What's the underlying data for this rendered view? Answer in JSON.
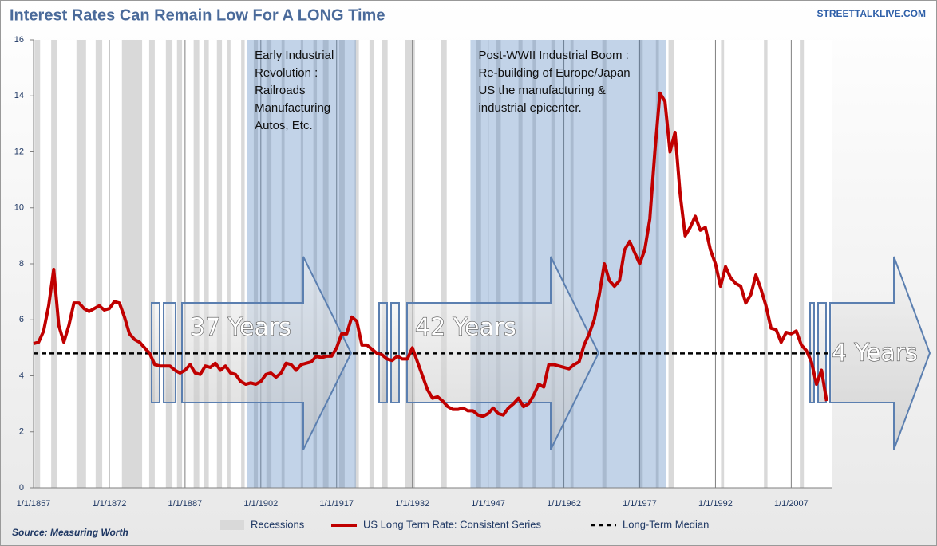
{
  "chart_data": {
    "type": "line",
    "title": "Interest Rates Can Remain Low For A LONG Time",
    "watermark": "STREETTALKLIVE.COM",
    "source": "Source: Measuring Worth",
    "x": [
      1857,
      1858,
      1859,
      1860,
      1861,
      1862,
      1863,
      1864,
      1865,
      1866,
      1867,
      1868,
      1869,
      1870,
      1871,
      1872,
      1873,
      1874,
      1875,
      1876,
      1877,
      1878,
      1879,
      1880,
      1881,
      1882,
      1883,
      1884,
      1885,
      1886,
      1887,
      1888,
      1889,
      1890,
      1891,
      1892,
      1893,
      1894,
      1895,
      1896,
      1897,
      1898,
      1899,
      1900,
      1901,
      1902,
      1903,
      1904,
      1905,
      1906,
      1907,
      1908,
      1909,
      1910,
      1911,
      1912,
      1913,
      1914,
      1915,
      1916,
      1917,
      1918,
      1919,
      1920,
      1921,
      1922,
      1923,
      1924,
      1925,
      1926,
      1927,
      1928,
      1929,
      1930,
      1931,
      1932,
      1933,
      1934,
      1935,
      1936,
      1937,
      1938,
      1939,
      1940,
      1941,
      1942,
      1943,
      1944,
      1945,
      1946,
      1947,
      1948,
      1949,
      1950,
      1951,
      1952,
      1953,
      1954,
      1955,
      1956,
      1957,
      1958,
      1959,
      1960,
      1961,
      1962,
      1963,
      1964,
      1965,
      1966,
      1967,
      1968,
      1969,
      1970,
      1971,
      1972,
      1973,
      1974,
      1975,
      1976,
      1977,
      1978,
      1979,
      1980,
      1981,
      1982,
      1983,
      1984,
      1985,
      1986,
      1987,
      1988,
      1989,
      1990,
      1991,
      1992,
      1993,
      1994,
      1995,
      1996,
      1997,
      1998,
      1999,
      2000,
      2001,
      2002,
      2003,
      2004,
      2005,
      2006,
      2007,
      2008,
      2009,
      2010,
      2011,
      2012,
      2013,
      2014
    ],
    "series": [
      {
        "name": "US Long Term Rate:  Consistent Series",
        "color": "#c00000",
        "values": [
          5.15,
          5.2,
          5.6,
          6.5,
          7.8,
          5.8,
          5.2,
          5.8,
          6.6,
          6.6,
          6.4,
          6.3,
          6.4,
          6.5,
          6.35,
          6.4,
          6.65,
          6.6,
          6.1,
          5.5,
          5.3,
          5.2,
          5.0,
          4.8,
          4.4,
          4.35,
          4.35,
          4.35,
          4.2,
          4.1,
          4.2,
          4.4,
          4.1,
          4.05,
          4.35,
          4.3,
          4.45,
          4.2,
          4.35,
          4.1,
          4.05,
          3.8,
          3.7,
          3.75,
          3.7,
          3.8,
          4.05,
          4.1,
          3.95,
          4.1,
          4.45,
          4.4,
          4.2,
          4.4,
          4.45,
          4.5,
          4.7,
          4.65,
          4.7,
          4.7,
          5.0,
          5.5,
          5.5,
          6.1,
          5.95,
          5.1,
          5.1,
          4.95,
          4.8,
          4.75,
          4.6,
          4.55,
          4.7,
          4.6,
          4.6,
          5.0,
          4.5,
          4.0,
          3.5,
          3.2,
          3.25,
          3.1,
          2.9,
          2.8,
          2.8,
          2.85,
          2.75,
          2.75,
          2.6,
          2.55,
          2.65,
          2.85,
          2.65,
          2.6,
          2.85,
          3.0,
          3.2,
          2.9,
          3.0,
          3.3,
          3.7,
          3.6,
          4.4,
          4.4,
          4.35,
          4.3,
          4.25,
          4.4,
          4.5,
          5.1,
          5.5,
          6.0,
          6.9,
          8.0,
          7.4,
          7.2,
          7.4,
          8.5,
          8.8,
          8.4,
          8.0,
          8.5,
          9.6,
          12.0,
          14.1,
          13.8,
          12.0,
          12.7,
          10.5,
          9.0,
          9.3,
          9.7,
          9.2,
          9.3,
          8.5,
          8.0,
          7.2,
          7.9,
          7.5,
          7.3,
          7.2,
          6.6,
          6.9,
          7.6,
          7.1,
          6.5,
          5.7,
          5.65,
          5.2,
          5.55,
          5.5,
          5.6,
          5.1,
          4.9,
          4.5,
          3.7,
          4.2,
          3.1
        ]
      }
    ],
    "median": {
      "name": "Long-Term Median",
      "value": 4.8,
      "color": "#000000"
    },
    "recessions": {
      "name": "Recessions",
      "color": "#d9d9d9",
      "spans": [
        [
          1857.2,
          1858.3
        ],
        [
          1860.5,
          1861.7
        ],
        [
          1865.5,
          1867.4
        ],
        [
          1869.3,
          1870.6
        ],
        [
          1874.5,
          1878.5
        ],
        [
          1879.9,
          1881.0
        ],
        [
          1883.2,
          1884.5
        ],
        [
          1885.4,
          1886.4
        ],
        [
          1888.7,
          1889.8
        ],
        [
          1890.8,
          1891.7
        ],
        [
          1893.3,
          1894.3
        ],
        [
          1895.4,
          1896.0
        ],
        [
          1898.1,
          1898.8
        ],
        [
          1900.6,
          1901.4
        ],
        [
          1903.1,
          1904.1
        ],
        [
          1906.1,
          1906.7
        ],
        [
          1909.9,
          1910.4
        ],
        [
          1912.4,
          1913.1
        ],
        [
          1914.3,
          1915.4
        ],
        [
          1917.5,
          1918.6
        ],
        [
          1920.6,
          1921.4
        ],
        [
          1923.5,
          1924.4
        ],
        [
          1926.0,
          1927.1
        ],
        [
          1930.6,
          1932.5
        ],
        [
          1937.7,
          1938.8
        ],
        [
          1944.6,
          1945.6
        ],
        [
          1948.6,
          1949.5
        ],
        [
          1953.0,
          1953.8
        ],
        [
          1955.8,
          1956.5
        ],
        [
          1959.5,
          1960.3
        ],
        [
          1963.3,
          1963.9
        ],
        [
          1969.6,
          1970.4
        ],
        [
          1976.7,
          1977.6
        ],
        [
          1980.2,
          1980.8
        ],
        [
          1982.7,
          1983.8
        ],
        [
          1993.1,
          1993.7
        ],
        [
          2001.6,
          2002.3
        ],
        [
          2008.7,
          2009.5
        ]
      ]
    },
    "eras": [
      {
        "start": 1899.2,
        "end": 1920.8,
        "color": "#4f81bd",
        "lines": [
          "Early Industrial",
          "Revolution :",
          "Railroads",
          "Manufacturing",
          "Autos, Etc."
        ]
      },
      {
        "start": 1943.5,
        "end": 1982.2,
        "color": "#4f81bd",
        "lines": [
          "Post-WWII Industrial Boom :",
          "Re-building of Europe/Japan",
          "US the manufacturing &",
          "industrial epicenter."
        ]
      }
    ],
    "arrow_labels": [
      "37 Years",
      "42 Years",
      "4 Years"
    ],
    "xlim": [
      1857,
      2015
    ],
    "ylim": [
      0,
      16
    ],
    "xticks": [
      {
        "value": 1857,
        "label": "1/1/1857"
      },
      {
        "value": 1872,
        "label": "1/1/1872"
      },
      {
        "value": 1887,
        "label": "1/1/1887"
      },
      {
        "value": 1902,
        "label": "1/1/1902"
      },
      {
        "value": 1917,
        "label": "1/1/1917"
      },
      {
        "value": 1932,
        "label": "1/1/1932"
      },
      {
        "value": 1947,
        "label": "1/1/1947"
      },
      {
        "value": 1962,
        "label": "1/1/1962"
      },
      {
        "value": 1977,
        "label": "1/1/1977"
      },
      {
        "value": 1992,
        "label": "1/1/1992"
      },
      {
        "value": 2007,
        "label": "1/1/2007"
      }
    ],
    "yticks": [
      0,
      2,
      4,
      6,
      8,
      10,
      12,
      14,
      16
    ],
    "grid": "x"
  }
}
